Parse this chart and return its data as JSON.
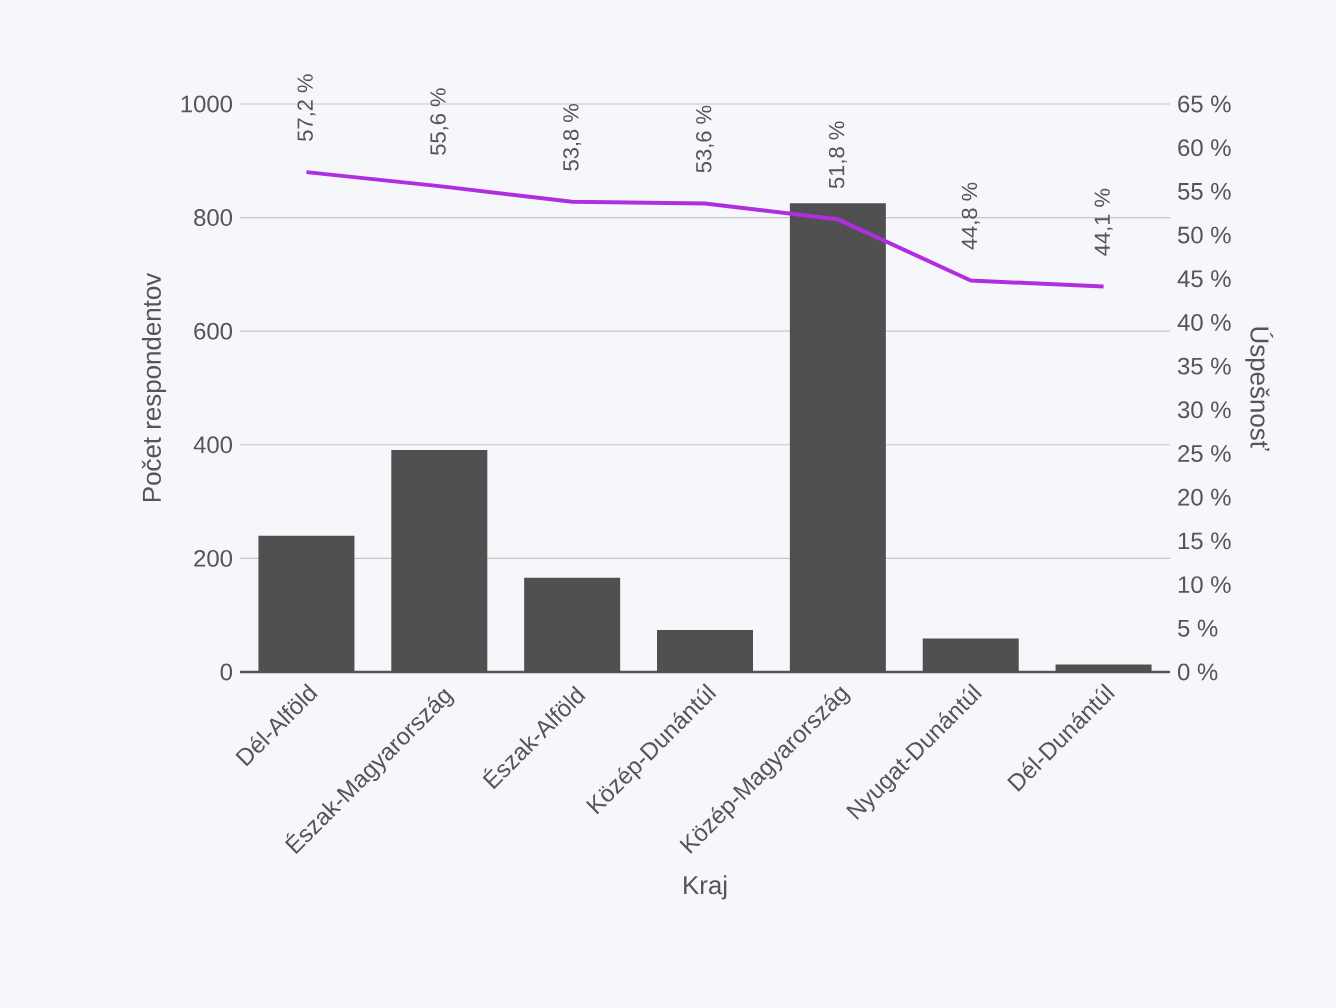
{
  "chart_data": {
    "type": "bar",
    "xlabel": "Kraj",
    "ylabel": "Počet respondentov",
    "y2label": "Úspešnosť",
    "categories": [
      "Dél-Alföld",
      "Észak-Magyarország",
      "Észak-Alföld",
      "Közép-Dunántúl",
      "Közép-Magyarország",
      "Nyugat-Dunántúl",
      "Dél-Dunántúl"
    ],
    "series": [
      {
        "color": "#505050",
        "values": [
          240,
          391,
          166,
          74,
          825,
          59,
          13
        ]
      },
      {
        "type": "line",
        "axis": "y2",
        "color": "#b02ee0",
        "values": [
          57.2,
          55.6,
          53.8,
          53.6,
          51.8,
          44.8,
          44.1
        ],
        "value_labels": [
          "57,2 %",
          "55,6 %",
          "53,8 %",
          "53,6 %",
          "51,8 %",
          "44,8 %",
          "44,1 %"
        ]
      }
    ],
    "ylim": [
      0,
      1000
    ],
    "yticks": [
      0,
      200,
      400,
      600,
      800,
      1000
    ],
    "y2lim": [
      0,
      65
    ],
    "y2ticks": [
      {
        "value": 0,
        "label": "0 %"
      },
      {
        "value": 5,
        "label": "5 %"
      },
      {
        "value": 10,
        "label": "10 %"
      },
      {
        "value": 15,
        "label": "15 %"
      },
      {
        "value": 20,
        "label": "20 %"
      },
      {
        "value": 25,
        "label": "25 %"
      },
      {
        "value": 30,
        "label": "30 %"
      },
      {
        "value": 35,
        "label": "35 %"
      },
      {
        "value": 40,
        "label": "40 %"
      },
      {
        "value": 45,
        "label": "45 %"
      },
      {
        "value": 50,
        "label": "50 %"
      },
      {
        "value": 55,
        "label": "55 %"
      },
      {
        "value": 60,
        "label": "60 %"
      },
      {
        "value": 65,
        "label": "65 %"
      }
    ],
    "grid": "y"
  }
}
